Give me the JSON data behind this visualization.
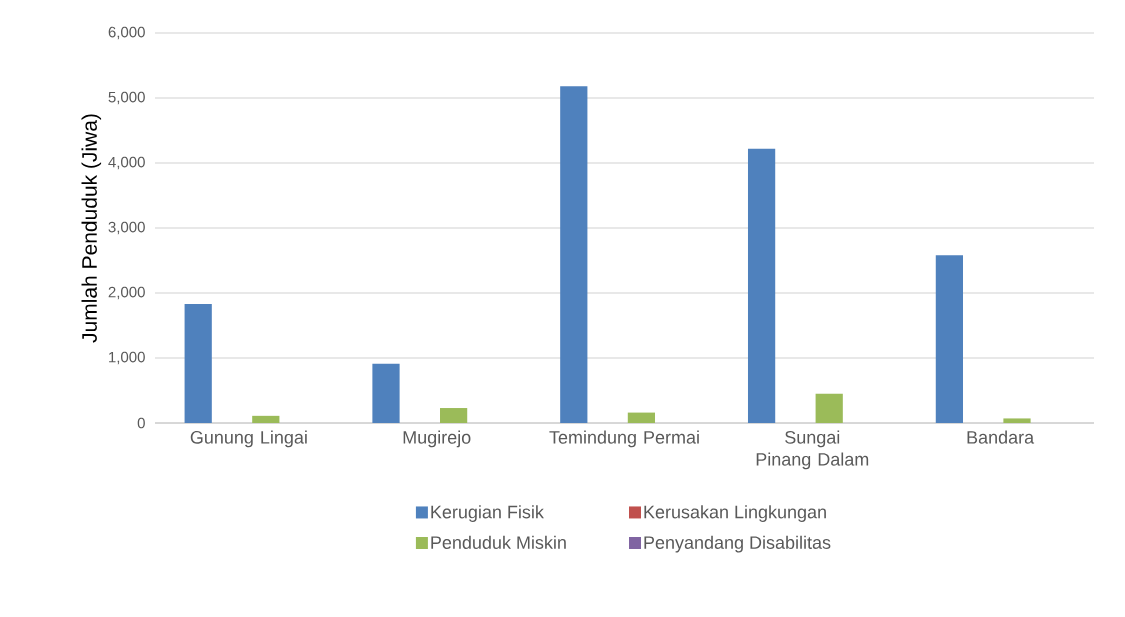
{
  "chart_data": {
    "type": "bar",
    "ylabel": "Jumlah Penduduk (Jiwa)",
    "categories": [
      "Gunung Lingai",
      "Mugirejo",
      "Temindung Permai",
      "Sungai Pinang Dalam",
      "Bandara"
    ],
    "series": [
      {
        "name": "Kerugian Fisik",
        "color": "#4f81bd",
        "values": [
          1830,
          910,
          5180,
          4220,
          2580
        ]
      },
      {
        "name": "Kerusakan Lingkungan",
        "color": "#c0504d",
        "values": [
          0,
          0,
          0,
          0,
          0
        ]
      },
      {
        "name": "Penduduk Miskin",
        "color": "#9bbb59",
        "values": [
          110,
          230,
          160,
          450,
          70
        ]
      },
      {
        "name": "Penyandang Disabilitas",
        "color": "#8064a2",
        "values": [
          0,
          0,
          0,
          0,
          0
        ]
      }
    ],
    "ylim": [
      0,
      6000
    ],
    "yticks": [
      {
        "value": 0,
        "label": "0"
      },
      {
        "value": 1000,
        "label": "1,000"
      },
      {
        "value": 2000,
        "label": "2,000"
      },
      {
        "value": 3000,
        "label": "3,000"
      },
      {
        "value": 4000,
        "label": "4,000"
      },
      {
        "value": 5000,
        "label": "5,000"
      },
      {
        "value": 6000,
        "label": "6,000"
      }
    ],
    "grid": "y",
    "legend": "bottom"
  }
}
